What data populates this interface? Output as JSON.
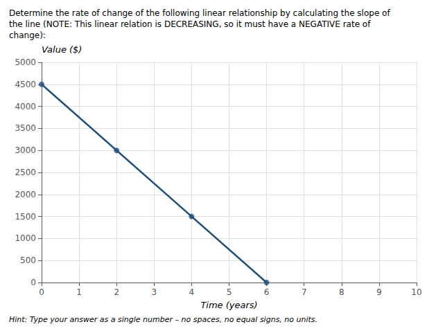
{
  "chart_data": {
    "type": "line",
    "title": "Determine the rate of change of the following linear relationship by calculating the slope of\nthe line (NOTE: This linear relation is DECREASING, so it must have a NEGATIVE rate of\nchange):",
    "annotations": [
      "Hint: Type your answer as a single number – no spaces, no equal signs, no units."
    ],
    "xlabel": "Time (years)",
    "ylabel": "Value ($)",
    "xlim": [
      0,
      10
    ],
    "ylim": [
      0,
      5000
    ],
    "xticks": [
      0,
      1,
      2,
      3,
      4,
      5,
      6,
      7,
      8,
      9,
      10
    ],
    "yticks": [
      0,
      500,
      1000,
      1500,
      2000,
      2500,
      3000,
      3500,
      4000,
      4500,
      5000
    ],
    "grid": true,
    "series": [
      {
        "type": "line",
        "color": "#1f4e79",
        "x": [
          0,
          6
        ],
        "values": [
          4500,
          0
        ]
      },
      {
        "type": "scatter",
        "color": "#1f4e79",
        "x": [
          0,
          2,
          4,
          6
        ],
        "values": [
          4500,
          3000,
          1500,
          0
        ]
      }
    ]
  }
}
